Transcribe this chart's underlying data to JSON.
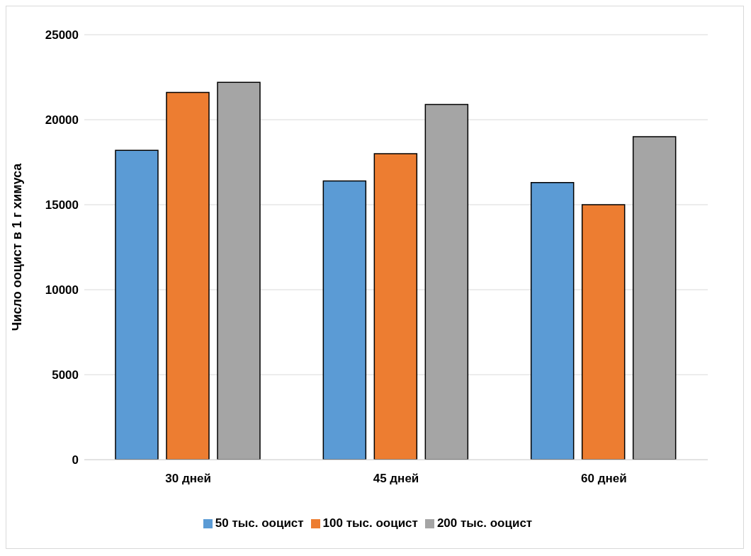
{
  "chart_data": {
    "type": "bar",
    "ylabel": "Число ооцист в 1 г химуса",
    "categories": [
      "30 дней",
      "45 дней",
      "60 дней"
    ],
    "series": [
      {
        "name": "50 тыс. ооцист",
        "color": "#5b9bd5",
        "values": [
          18200,
          16400,
          16300
        ]
      },
      {
        "name": "100 тыс. ооцист",
        "color": "#ed7d31",
        "values": [
          21600,
          18000,
          15000
        ]
      },
      {
        "name": "200 тыс. ооцист",
        "color": "#a5a5a5",
        "values": [
          22200,
          20900,
          19000
        ]
      }
    ],
    "ylim": [
      0,
      25000
    ],
    "yticks": [
      0,
      5000,
      10000,
      15000,
      20000,
      25000
    ],
    "grid": "y",
    "legend": "bottom"
  }
}
